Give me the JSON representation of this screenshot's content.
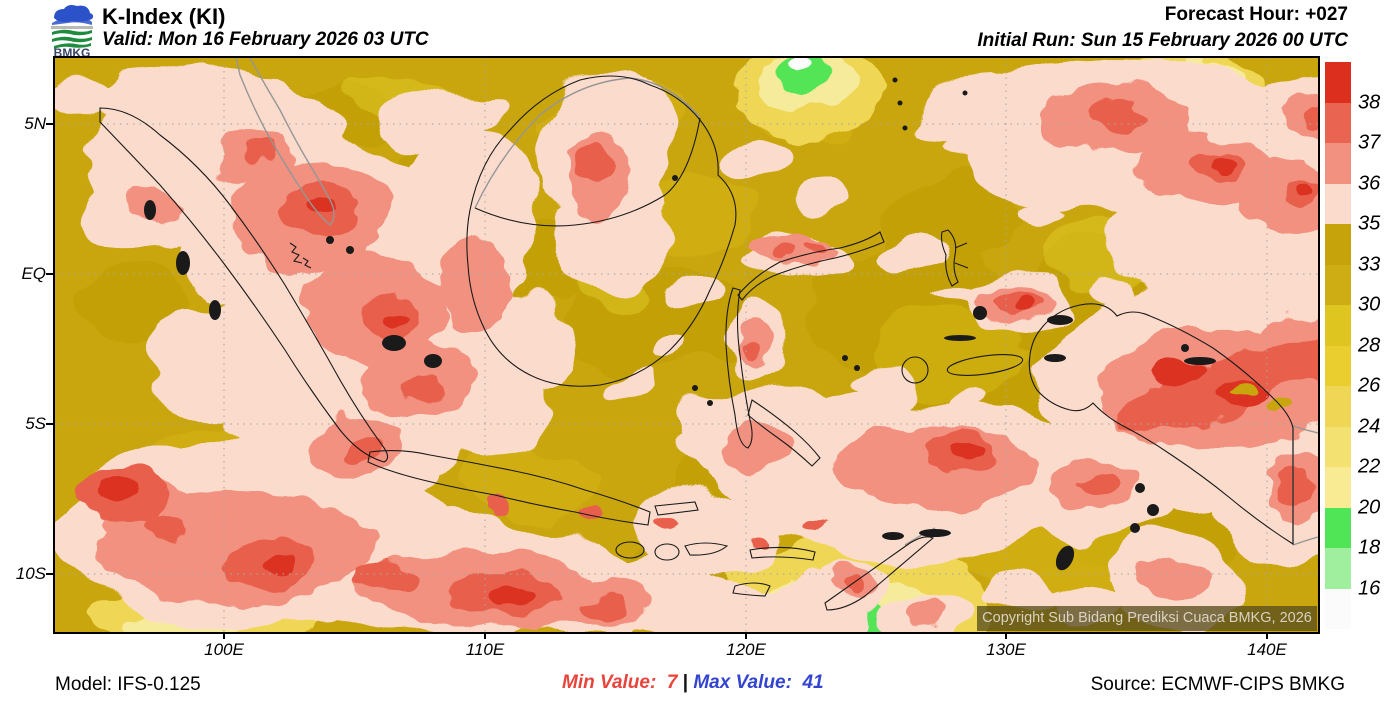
{
  "header": {
    "logo": "BMKG",
    "title": "K-Index (KI)",
    "valid": "Valid: Mon 16 February 2026 03 UTC",
    "forecast_hour": "Forecast Hour: +027",
    "initial_run": "Initial Run: Sun 15 February 2026 00 UTC"
  },
  "map": {
    "lat_labels": [
      "5N",
      "EQ",
      "5S",
      "10S"
    ],
    "lon_labels": [
      "100E",
      "110E",
      "120E",
      "130E",
      "140E"
    ],
    "copyright": "Copyright Sub Bidang Prediksi Cuaca BMKG, 2026"
  },
  "colorbar": {
    "labels": [
      "38",
      "37",
      "36",
      "35",
      "33",
      "30",
      "28",
      "26",
      "24",
      "22",
      "20",
      "18",
      "16"
    ],
    "colors": [
      "#DC2F1E",
      "#E96551",
      "#F29180",
      "#FBDCCC",
      "#C6A30A",
      "#CEAD14",
      "#DFC51F",
      "#EACD2E",
      "#EFD655",
      "#F3E272",
      "#F8EB94",
      "#50E556",
      "#9FEF9E",
      "#FBFBFB"
    ]
  },
  "footer": {
    "model": "Model: IFS-0.125",
    "min_label": "Min Value:",
    "min_value": "7",
    "separator": "|",
    "max_label": "Max Value:",
    "max_value": "41",
    "min_color": "#E8443C",
    "max_color": "#3344D0",
    "source": "Source: ECMWF-CIPS BMKG"
  }
}
